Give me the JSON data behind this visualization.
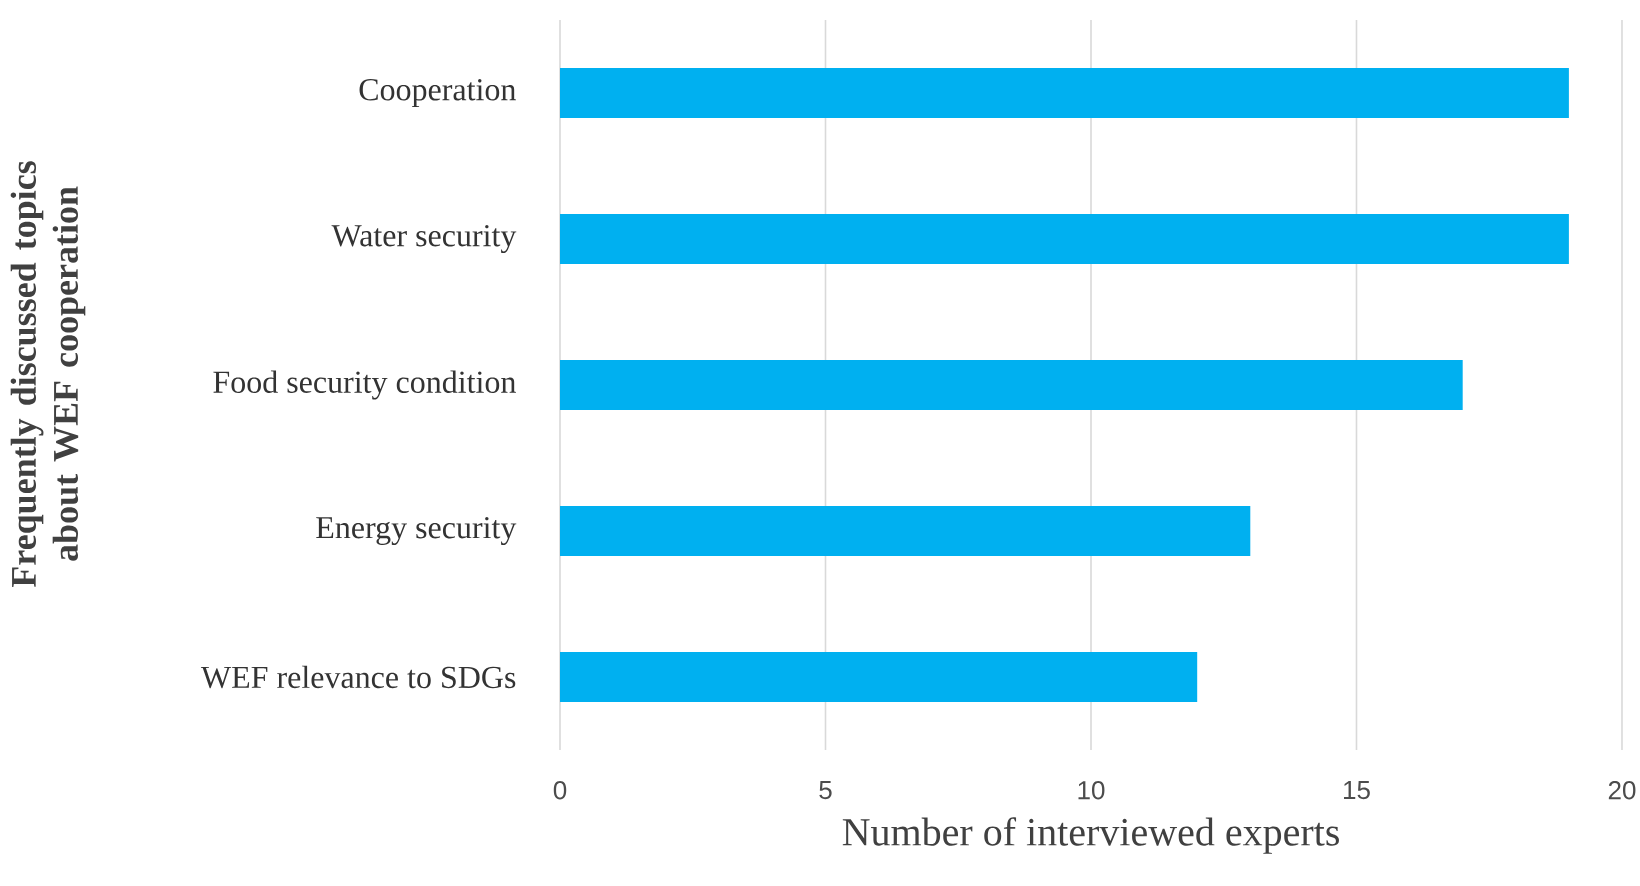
{
  "chart_data": {
    "type": "bar",
    "orientation": "horizontal",
    "categories": [
      "Cooperation",
      "Water security",
      "Food security condition",
      "Energy security",
      "WEF relevance to SDGs"
    ],
    "values": [
      19,
      19,
      17,
      13,
      12
    ],
    "color": "#00b0f0",
    "xlim": [
      0,
      20
    ],
    "xticks": [
      0,
      5,
      10,
      15,
      20
    ],
    "grid": "x",
    "xlabel": "Number of interviewed experts",
    "ylabel": "Frequently discussed topics about WEF cooperation"
  }
}
